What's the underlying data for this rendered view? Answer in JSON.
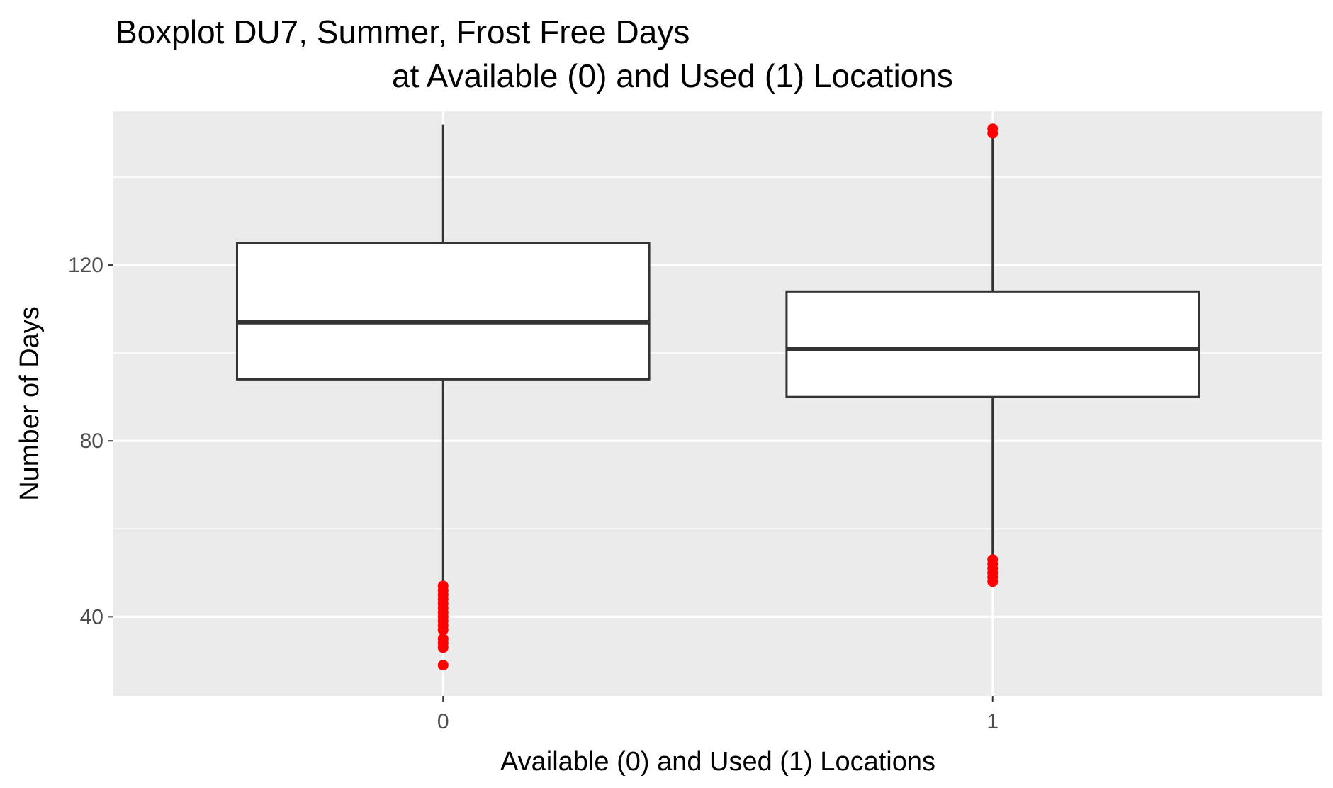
{
  "chart_data": {
    "type": "box",
    "title_line1": "Boxplot DU7, Summer, Frost Free Days",
    "title_line2": "at Available (0) and Used (1) Locations",
    "xlabel": "Available (0) and Used (1) Locations",
    "ylabel": "Number of Days",
    "categories": [
      "0",
      "1"
    ],
    "ylim": [
      22,
      155
    ],
    "yticks": [
      40,
      80,
      120
    ],
    "grid": true,
    "colors": {
      "panel": "#ebebeb",
      "grid": "#ffffff",
      "box_fill": "#ffffff",
      "box_line": "#333333",
      "outlier": "#ff0000"
    },
    "boxes": [
      {
        "category": "0",
        "whisker_low": 48,
        "q1": 94,
        "median": 107,
        "q3": 125,
        "whisker_high": 152,
        "outliers": [
          47,
          46,
          45,
          44,
          43,
          42,
          41,
          40,
          39,
          38,
          37,
          35,
          34,
          33,
          29
        ]
      },
      {
        "category": "1",
        "whisker_low": 54,
        "q1": 90,
        "median": 101,
        "q3": 114,
        "whisker_high": 149,
        "outliers": [
          48,
          49,
          50,
          51,
          52,
          53,
          150,
          151
        ]
      }
    ]
  }
}
